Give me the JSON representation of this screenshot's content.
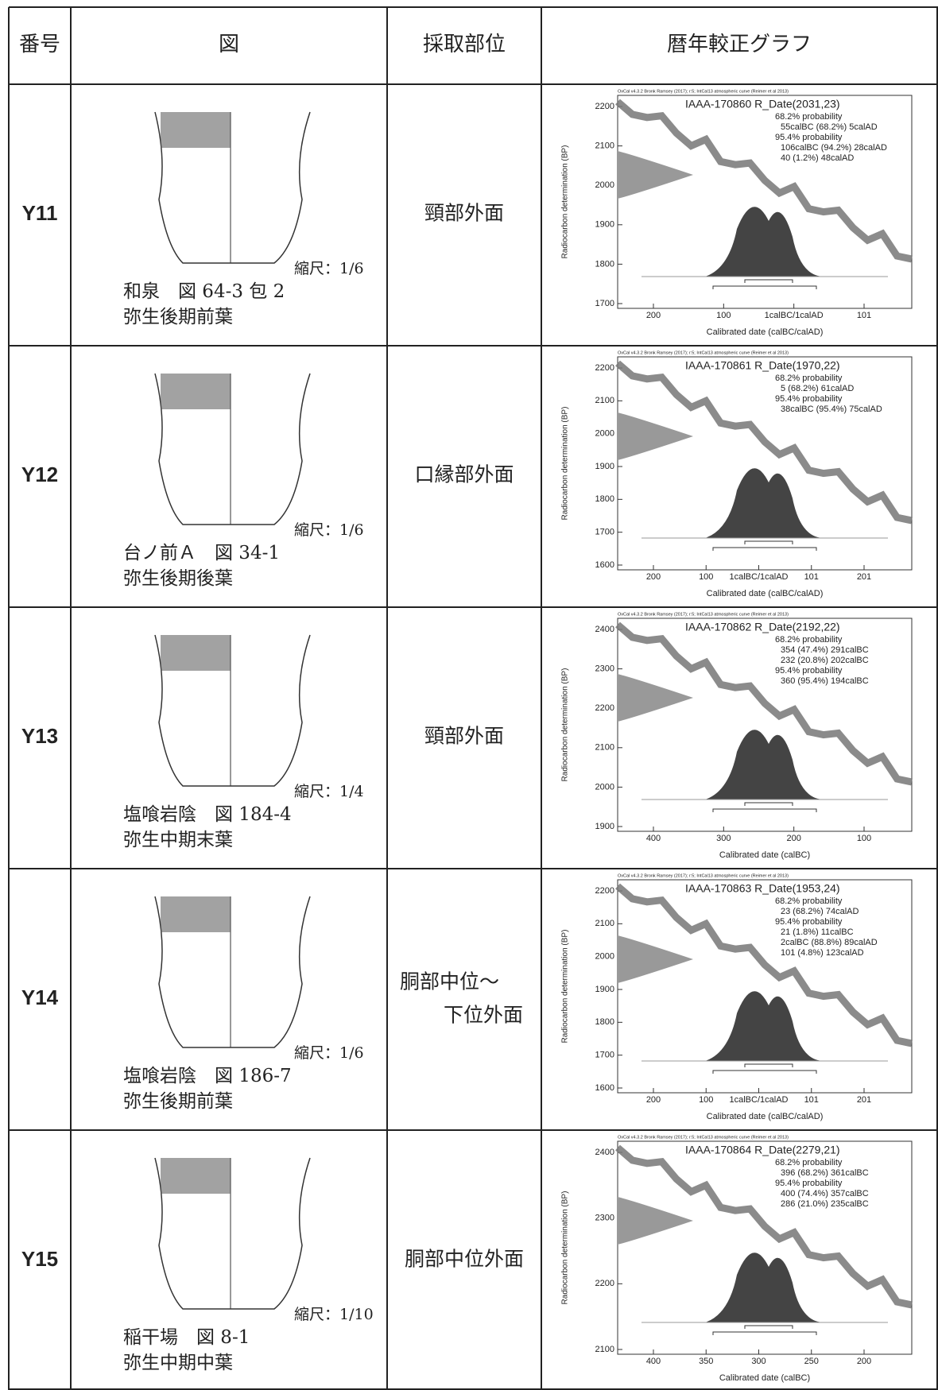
{
  "header": [
    "番号",
    "図",
    "採取部位",
    "暦年較正グラフ"
  ],
  "graph_header": "OxCal v4.3.2 Bronk Ramsey (2017); r:5; IntCal13 atmospheric curve (Reimer et al 2013)",
  "ylabel": "Radiocarbon determination (BP)",
  "rows": [
    {
      "id": "Y11",
      "scale": "縮尺：1/6",
      "caption": [
        "和泉　図 64-3 包 2",
        "弥生後期前葉"
      ],
      "part": [
        "頸部外面"
      ],
      "graph": {
        "title": "IAAA-170860 R_Date(2031,23)",
        "lines": [
          "68.2% probability",
          "55calBC (68.2%) 5calAD",
          "95.4% probability",
          "106calBC (94.2%) 28calAD",
          "40 (1.2%) 48calAD"
        ],
        "yticks": [
          "2200",
          "2100",
          "2000",
          "1900",
          "1800",
          "1700"
        ],
        "xticks": [
          "200",
          "100",
          "1calBC/1calAD",
          "101"
        ],
        "xlabel": "Calibrated date (calBC/calAD)"
      }
    },
    {
      "id": "Y12",
      "scale": "縮尺：1/6",
      "caption": [
        "台ノ前Ａ　図 34-1",
        "弥生後期後葉"
      ],
      "part": [
        "口縁部外面"
      ],
      "graph": {
        "title": "IAAA-170861 R_Date(1970,22)",
        "lines": [
          "68.2% probability",
          "5 (68.2%) 61calAD",
          "95.4% probability",
          "38calBC (95.4%) 75calAD"
        ],
        "yticks": [
          "2200",
          "2100",
          "2000",
          "1900",
          "1800",
          "1700",
          "1600"
        ],
        "xticks": [
          "200",
          "100",
          "1calBC/1calAD",
          "101",
          "201"
        ],
        "xlabel": "Calibrated date (calBC/calAD)"
      }
    },
    {
      "id": "Y13",
      "scale": "縮尺：1/4",
      "caption": [
        "塩喰岩陰　図 184-4",
        "弥生中期末葉"
      ],
      "part": [
        "頸部外面"
      ],
      "graph": {
        "title": "IAAA-170862 R_Date(2192,22)",
        "lines": [
          "68.2% probability",
          "354 (47.4%) 291calBC",
          "232 (20.8%) 202calBC",
          "95.4% probability",
          "360 (95.4%) 194calBC"
        ],
        "yticks": [
          "2400",
          "2300",
          "2200",
          "2100",
          "2000",
          "1900"
        ],
        "xticks": [
          "400",
          "300",
          "200",
          "100"
        ],
        "xlabel": "Calibrated date (calBC)"
      }
    },
    {
      "id": "Y14",
      "scale": "縮尺：1/6",
      "caption": [
        "塩喰岩陰　図 186-7",
        "弥生後期前葉"
      ],
      "part": [
        "胴部中位～",
        "下位外面"
      ],
      "graph": {
        "title": "IAAA-170863 R_Date(1953,24)",
        "lines": [
          "68.2% probability",
          "23 (68.2%) 74calAD",
          "95.4% probability",
          "21 (1.8%) 11calBC",
          "2calBC (88.8%) 89calAD",
          "101 (4.8%) 123calAD"
        ],
        "yticks": [
          "2200",
          "2100",
          "2000",
          "1900",
          "1800",
          "1700",
          "1600"
        ],
        "xticks": [
          "200",
          "100",
          "1calBC/1calAD",
          "101",
          "201"
        ],
        "xlabel": "Calibrated date (calBC/calAD)"
      }
    },
    {
      "id": "Y15",
      "scale": "縮尺：1/10",
      "caption": [
        "稲干場　図 8-1",
        "弥生中期中葉"
      ],
      "part": [
        "胴部中位外面"
      ],
      "graph": {
        "title": "IAAA-170864 R_Date(2279,21)",
        "lines": [
          "68.2% probability",
          "396 (68.2%) 361calBC",
          "95.4% probability",
          "400 (74.4%) 357calBC",
          "286 (21.0%) 235calBC"
        ],
        "yticks": [
          "2400",
          "2300",
          "2200",
          "2100"
        ],
        "xticks": [
          "400",
          "350",
          "300",
          "250",
          "200"
        ],
        "xlabel": "Calibrated date (calBC)"
      }
    }
  ]
}
